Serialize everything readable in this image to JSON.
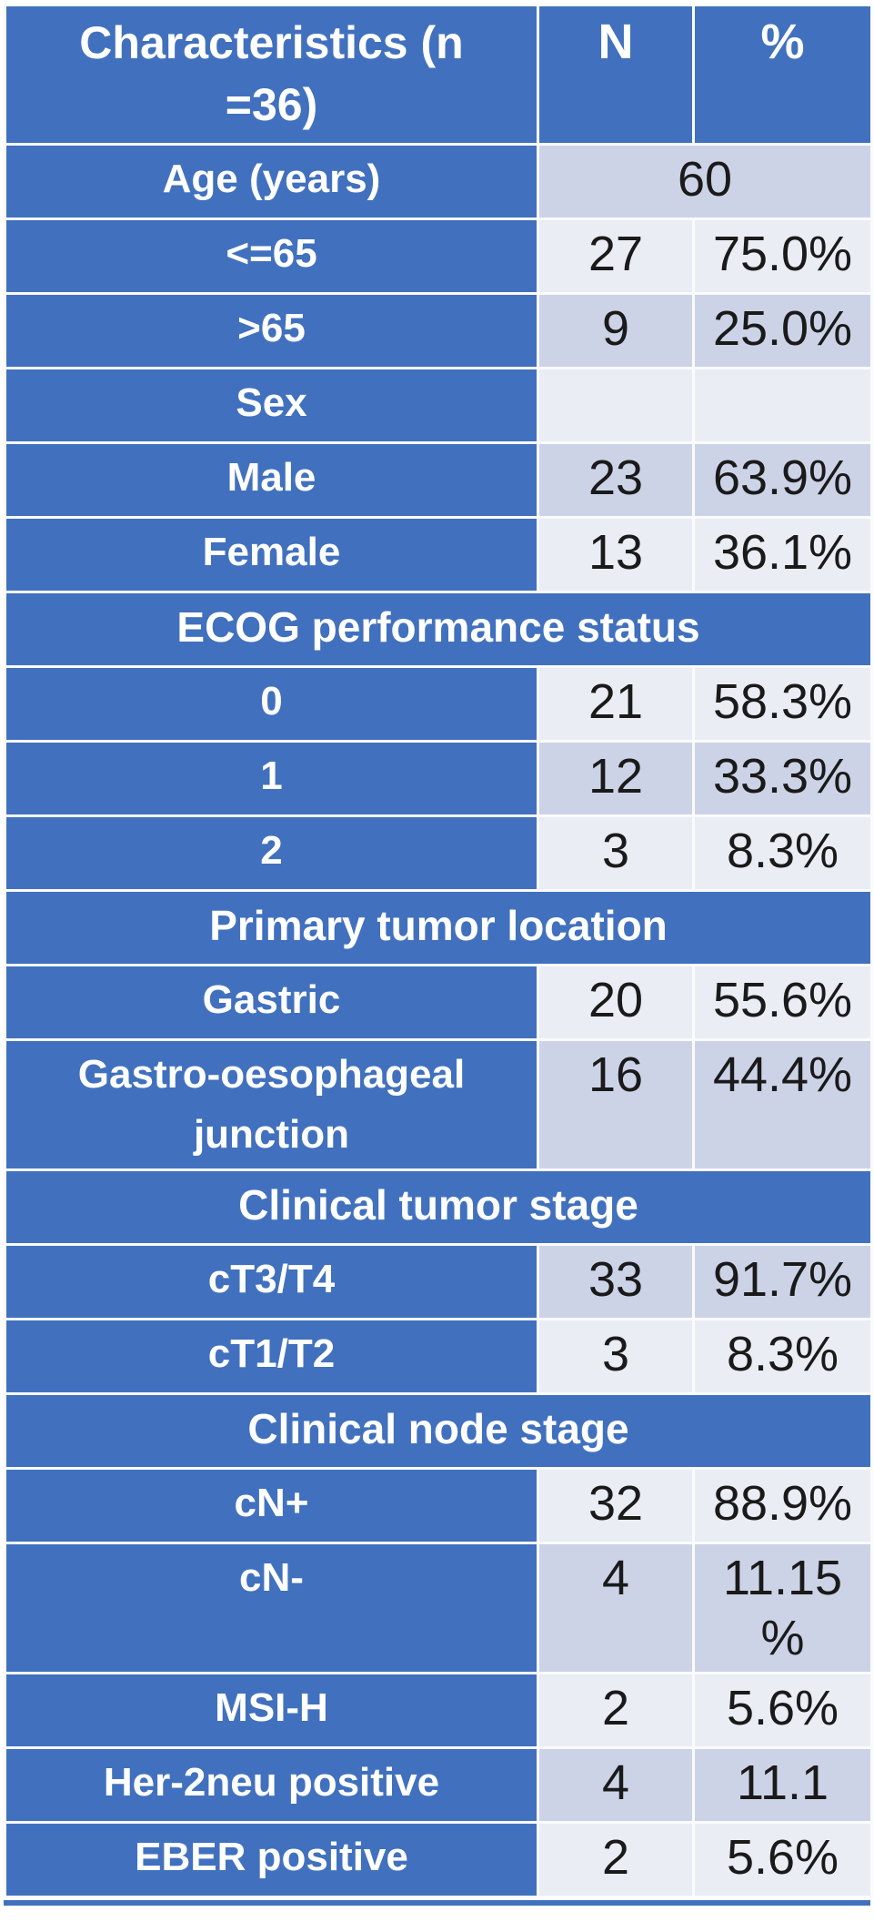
{
  "colors": {
    "blue": "#4171BE",
    "band_light": "#EBEDF5",
    "band_dark": "#CDD3E7",
    "border": "#FAFBFD",
    "text_dark": "#1A1A1A",
    "text_light": "#FFFFFF"
  },
  "chart_data": {
    "type": "table",
    "title": "Characteristics (n =36)",
    "columns": [
      "Characteristics (n =36)",
      "N",
      "%"
    ],
    "rows": [
      [
        "Age (years)",
        "60",
        ""
      ],
      [
        "<=65",
        "27",
        "75.0%"
      ],
      [
        ">65",
        "9",
        "25.0%"
      ],
      [
        "Sex",
        "",
        ""
      ],
      [
        "Male",
        "23",
        "63.9%"
      ],
      [
        "Female",
        "13",
        "36.1%"
      ],
      [
        "ECOG performance status",
        "",
        ""
      ],
      [
        "0",
        "21",
        "58.3%"
      ],
      [
        "1",
        "12",
        "33.3%"
      ],
      [
        "2",
        "3",
        "8.3%"
      ],
      [
        "Primary tumor location",
        "",
        ""
      ],
      [
        "Gastric",
        "20",
        "55.6%"
      ],
      [
        "Gastro-oesophageal junction",
        "16",
        "44.4%"
      ],
      [
        "Clinical tumor stage",
        "",
        ""
      ],
      [
        "cT3/T4",
        "33",
        "91.7%"
      ],
      [
        "cT1/T2",
        "3",
        "8.3%"
      ],
      [
        "Clinical node stage",
        "",
        ""
      ],
      [
        "cN+",
        "32",
        "88.9%"
      ],
      [
        "cN-",
        "4",
        "11.15%"
      ],
      [
        "MSI-H",
        "2",
        "5.6%"
      ],
      [
        "Her-2neu positive",
        "4",
        "11.1"
      ],
      [
        "EBER positive",
        "2",
        "5.6%"
      ]
    ]
  },
  "table": {
    "rows": [
      {
        "type": "header",
        "label": "Characteristics (n\n=36)",
        "n": "N",
        "pct": "%"
      },
      {
        "type": "data",
        "band": "dark",
        "merged": true,
        "label": "Age (years)",
        "value": "60"
      },
      {
        "type": "data",
        "band": "light",
        "label": "<=65",
        "n": "27",
        "pct": "75.0%"
      },
      {
        "type": "data",
        "band": "dark",
        "label": ">65",
        "n": "9",
        "pct": "25.0%"
      },
      {
        "type": "data",
        "band": "light",
        "label": "Sex",
        "n": "",
        "pct": ""
      },
      {
        "type": "data",
        "band": "dark",
        "label": "Male",
        "n": "23",
        "pct": "63.9%"
      },
      {
        "type": "data",
        "band": "light",
        "label": "Female",
        "n": "13",
        "pct": "36.1%"
      },
      {
        "type": "section",
        "label": "ECOG performance status"
      },
      {
        "type": "data",
        "band": "light",
        "label": "0",
        "n": "21",
        "pct": "58.3%"
      },
      {
        "type": "data",
        "band": "dark",
        "label": "1",
        "n": "12",
        "pct": "33.3%"
      },
      {
        "type": "data",
        "band": "light",
        "label": "2",
        "n": "3",
        "pct": "8.3%"
      },
      {
        "type": "section",
        "label": "Primary tumor location"
      },
      {
        "type": "data",
        "band": "light",
        "label": "Gastric",
        "n": "20",
        "pct": "55.6%"
      },
      {
        "type": "data",
        "band": "dark",
        "label": "Gastro-oesophageal junction",
        "n": "16",
        "pct": "44.4%"
      },
      {
        "type": "section",
        "label": "Clinical tumor stage"
      },
      {
        "type": "data",
        "band": "dark",
        "label": "cT3/T4",
        "n": "33",
        "pct": "91.7%"
      },
      {
        "type": "data",
        "band": "light",
        "label": "cT1/T2",
        "n": "3",
        "pct": "8.3%"
      },
      {
        "type": "section",
        "label": "Clinical node stage"
      },
      {
        "type": "data",
        "band": "light",
        "label": "cN+",
        "n": "32",
        "pct": "88.9%"
      },
      {
        "type": "data",
        "band": "dark",
        "label": "cN-",
        "n": "4",
        "pct": "11.15\n%"
      },
      {
        "type": "data",
        "band": "light",
        "label": "MSI-H",
        "n": "2",
        "pct": "5.6%"
      },
      {
        "type": "data",
        "band": "dark",
        "label": "Her-2neu positive",
        "n": "4",
        "pct": "11.1"
      },
      {
        "type": "data",
        "band": "light",
        "label": "EBER positive",
        "n": "2",
        "pct": "5.6%"
      }
    ]
  }
}
